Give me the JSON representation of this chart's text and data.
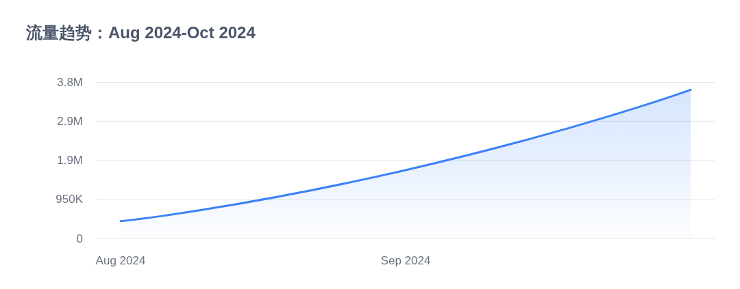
{
  "chart_data": {
    "type": "area",
    "title": "流量趋势：Aug 2024-Oct 2024",
    "categories": [
      "Aug 2024",
      "Sep 2024",
      null
    ],
    "values": [
      420000,
      1660000,
      3610000
    ],
    "color": "#3b82f6",
    "ylim": [
      0,
      3800000
    ],
    "yticks": [
      0,
      {
        "value": 950000,
        "label": "950K"
      },
      {
        "value": 1900000,
        "label": "1.9M"
      },
      {
        "value": 2850000,
        "label": "2.9M"
      },
      {
        "value": 3800000,
        "label": "3.8M"
      }
    ],
    "grid": "y",
    "marker": "none"
  }
}
